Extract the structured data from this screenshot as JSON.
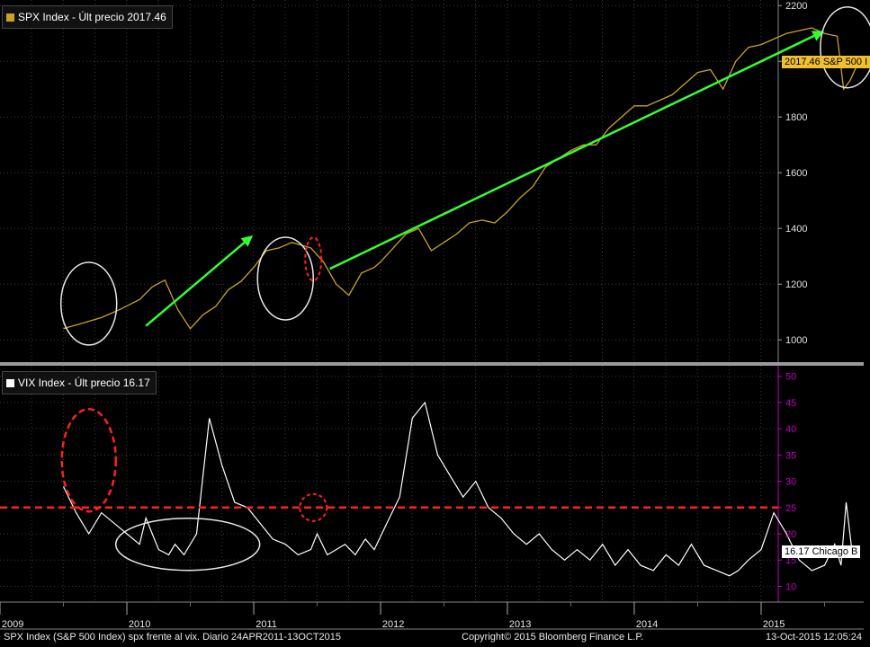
{
  "colors": {
    "background": "#000000",
    "spx_line": "#c9a227",
    "vix_line": "#ffffff",
    "vix_axis": "#c000c0",
    "arrow": "#33ff33",
    "circle_white": "#e8e8e8",
    "circle_red": "#ff2020",
    "ref_line": "#ff2020",
    "grid": "#3a3a3a"
  },
  "legend_spx": "SPX Index - Últ precio 2017.46",
  "legend_vix": "VIX Index - Últ precio 16.17",
  "tag_spx": "2017.46 S&P 500 I",
  "tag_vix": "16.17 Chicago B",
  "footer_left": "SPX Index (S&P 500 Index) spx frente al vix.  Diario 24APR2011-13OCT2015",
  "footer_center": "Copyright© 2015 Bloomberg Finance L.P.",
  "footer_right": "13-Oct-2015 12:05:24",
  "chart_data": [
    {
      "type": "line",
      "series": [
        {
          "name": "SPX Index",
          "last": 2017.46
        }
      ],
      "x": [
        2009.5,
        2009.65,
        2009.8,
        2009.95,
        2010.1,
        2010.2,
        2010.3,
        2010.4,
        2010.5,
        2010.6,
        2010.7,
        2010.8,
        2010.9,
        2011.0,
        2011.1,
        2011.2,
        2011.3,
        2011.45,
        2011.55,
        2011.65,
        2011.75,
        2011.85,
        2011.95,
        2012.0,
        2012.1,
        2012.2,
        2012.3,
        2012.4,
        2012.5,
        2012.6,
        2012.7,
        2012.8,
        2012.9,
        2013.0,
        2013.1,
        2013.2,
        2013.3,
        2013.4,
        2013.5,
        2013.6,
        2013.7,
        2013.8,
        2013.9,
        2014.0,
        2014.1,
        2014.2,
        2014.3,
        2014.4,
        2014.5,
        2014.6,
        2014.7,
        2014.8,
        2014.9,
        2015.0,
        2015.1,
        2015.2,
        2015.3,
        2015.4,
        2015.5,
        2015.6,
        2015.65,
        2015.7,
        2015.75,
        2015.78
      ],
      "values": [
        1040,
        1060,
        1080,
        1110,
        1145,
        1190,
        1215,
        1110,
        1040,
        1090,
        1120,
        1180,
        1210,
        1260,
        1320,
        1330,
        1350,
        1330,
        1280,
        1200,
        1160,
        1240,
        1260,
        1280,
        1330,
        1380,
        1400,
        1320,
        1350,
        1380,
        1420,
        1430,
        1420,
        1460,
        1510,
        1550,
        1620,
        1650,
        1680,
        1700,
        1700,
        1760,
        1800,
        1840,
        1840,
        1860,
        1880,
        1920,
        1960,
        1970,
        1900,
        2000,
        2050,
        2060,
        2080,
        2100,
        2110,
        2120,
        2100,
        2090,
        1900,
        1930,
        1980,
        2017.46
      ],
      "ylim": [
        920,
        2220
      ],
      "yticks": [
        1000,
        1200,
        1400,
        1600,
        1800,
        2000,
        2200
      ],
      "annotations": {
        "arrows": 2,
        "white_circles": 3,
        "red_circles": 1
      }
    },
    {
      "type": "line",
      "series": [
        {
          "name": "VIX Index",
          "last": 16.17
        }
      ],
      "x": [
        2009.5,
        2009.6,
        2009.7,
        2009.8,
        2009.9,
        2010.0,
        2010.1,
        2010.15,
        2010.25,
        2010.33,
        2010.38,
        2010.45,
        2010.55,
        2010.65,
        2010.75,
        2010.85,
        2010.95,
        2011.05,
        2011.15,
        2011.25,
        2011.35,
        2011.45,
        2011.5,
        2011.58,
        2011.65,
        2011.72,
        2011.8,
        2011.88,
        2011.95,
        2012.05,
        2012.15,
        2012.25,
        2012.35,
        2012.45,
        2012.55,
        2012.65,
        2012.75,
        2012.85,
        2012.95,
        2013.05,
        2013.15,
        2013.25,
        2013.35,
        2013.45,
        2013.55,
        2013.65,
        2013.75,
        2013.85,
        2013.95,
        2014.05,
        2014.15,
        2014.25,
        2014.35,
        2014.45,
        2014.55,
        2014.65,
        2014.75,
        2014.82,
        2014.9,
        2015.0,
        2015.1,
        2015.2,
        2015.3,
        2015.4,
        2015.5,
        2015.58,
        2015.63,
        2015.67,
        2015.72,
        2015.78
      ],
      "values": [
        29,
        24,
        20,
        24,
        22,
        20,
        18,
        23,
        17,
        16,
        18,
        16,
        20,
        42,
        33,
        26,
        25,
        22,
        19,
        18,
        16,
        17,
        20,
        16,
        17,
        18,
        16,
        19,
        17,
        22,
        27,
        42,
        45,
        35,
        31,
        27,
        30,
        25,
        23,
        20,
        18,
        20,
        17,
        15,
        17,
        15,
        18,
        14,
        17,
        14,
        13,
        16,
        14,
        18,
        14,
        13,
        12,
        13,
        15,
        17,
        24,
        20,
        15,
        13,
        14,
        18,
        14,
        26,
        16,
        16.17
      ],
      "ylim": [
        7,
        52
      ],
      "yticks": [
        10,
        15,
        20,
        25,
        30,
        35,
        40,
        45,
        50
      ],
      "reference_line": 25
    }
  ],
  "x_tick_labels": [
    "2009",
    "2010",
    "2011",
    "2012",
    "2013",
    "2014",
    "2015"
  ]
}
